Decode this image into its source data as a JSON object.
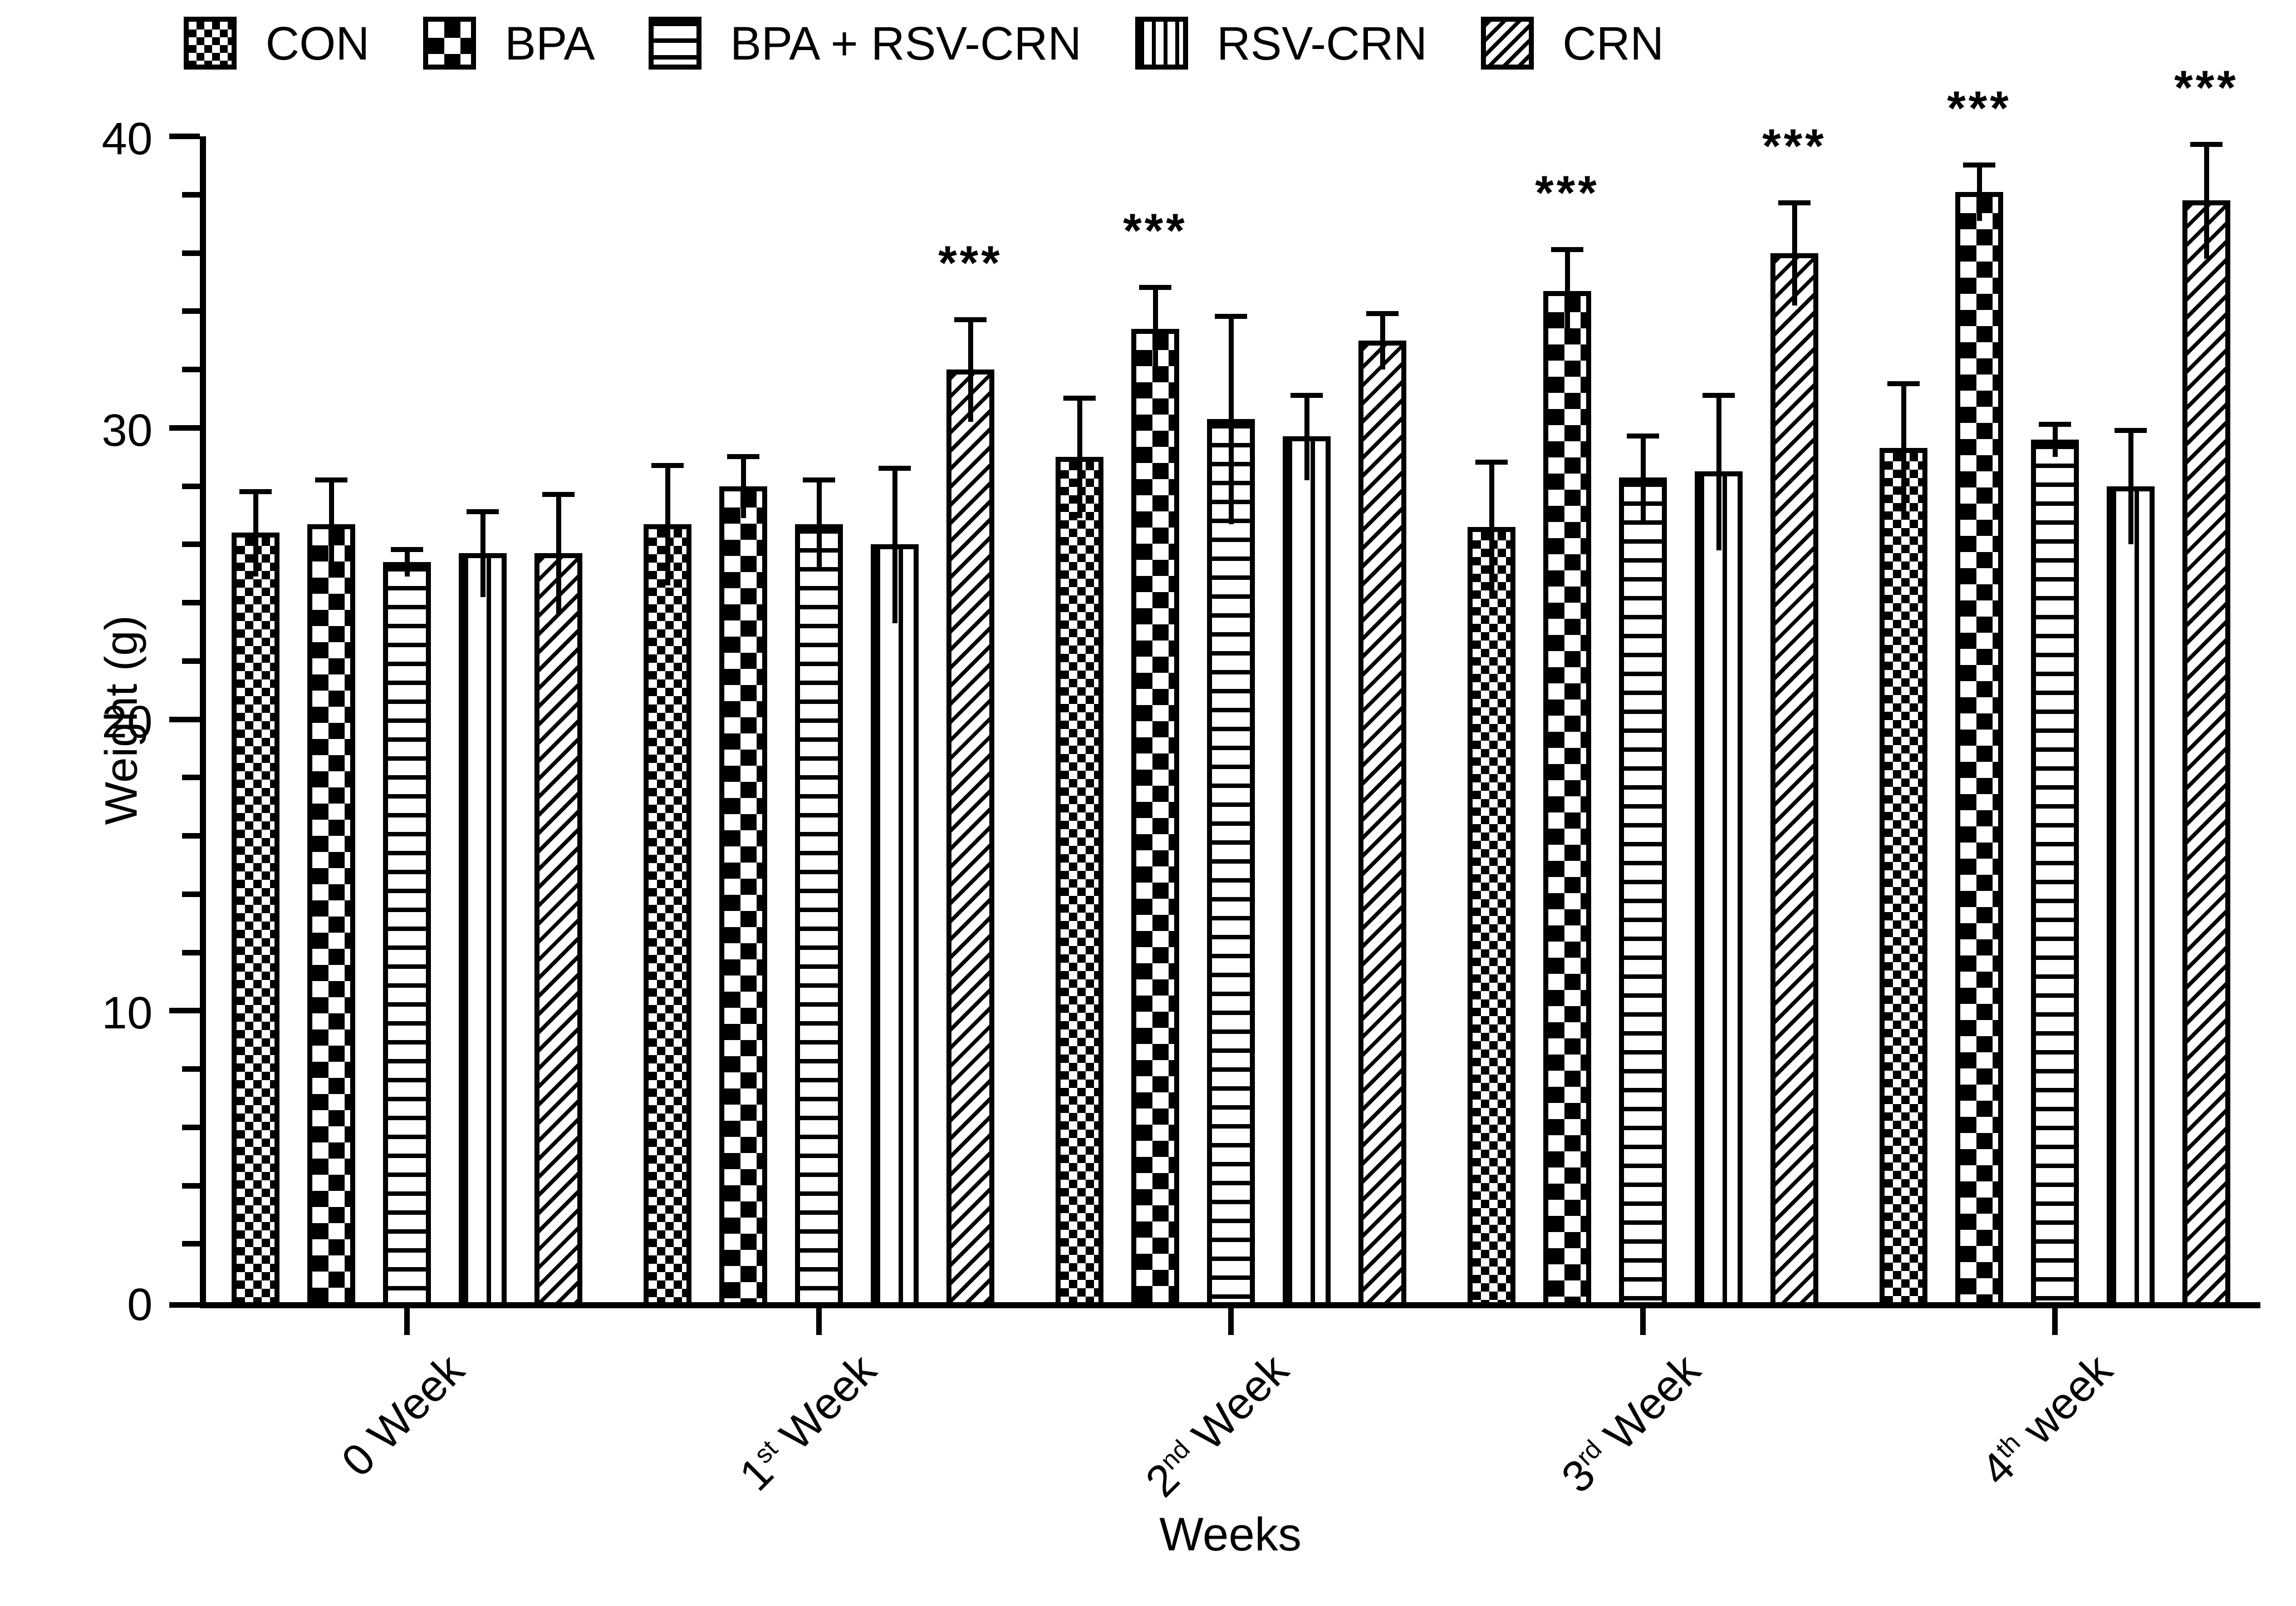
{
  "colors": {
    "ink": "#000000",
    "paper": "#ffffff"
  },
  "chart_data": {
    "type": "bar",
    "title": "",
    "xlabel": "Weeks",
    "ylabel": "Weight (g)",
    "ylim": [
      0,
      40
    ],
    "ytick_labels": [
      "0",
      "10",
      "20",
      "30",
      "40"
    ],
    "ytick_values": [
      0,
      10,
      20,
      30,
      40
    ],
    "minor_tick_step": 2,
    "grid": "off",
    "legend_position": "top",
    "error_bars": "upper SEM shown, stems symmetric",
    "sig_marker": "***",
    "categories": [
      {
        "pre": "0",
        "sup": "",
        "post": " Week"
      },
      {
        "pre": "1",
        "sup": "st",
        "post": " Week"
      },
      {
        "pre": "2",
        "sup": "nd",
        "post": " Week"
      },
      {
        "pre": "3",
        "sup": "rd",
        "post": " Week"
      },
      {
        "pre": "4",
        "sup": "th",
        "post": " week"
      }
    ],
    "series": [
      {
        "name": "CON",
        "pattern": "checker-small",
        "values": [
          26.4,
          26.7,
          29.0,
          26.6,
          29.3
        ],
        "errors": [
          1.5,
          2.1,
          2.1,
          2.3,
          2.3
        ],
        "sig": [
          "",
          "",
          "",
          "",
          ""
        ]
      },
      {
        "name": "BPA",
        "pattern": "checker-large",
        "values": [
          26.7,
          28.0,
          33.4,
          34.7,
          38.1
        ],
        "errors": [
          1.6,
          1.1,
          1.5,
          1.5,
          1.0
        ],
        "sig": [
          "",
          "",
          "***",
          "***",
          "***"
        ]
      },
      {
        "name": "BPA + RSV-CRN",
        "pattern": "hlines",
        "values": [
          25.4,
          26.7,
          30.3,
          28.3,
          29.6
        ],
        "errors": [
          0.5,
          1.6,
          3.6,
          1.5,
          0.6
        ],
        "sig": [
          "",
          "",
          "",
          "",
          ""
        ]
      },
      {
        "name": "RSV-CRN",
        "pattern": "vlines",
        "values": [
          25.7,
          26.0,
          29.7,
          28.5,
          28.0
        ],
        "errors": [
          1.5,
          2.7,
          1.5,
          2.7,
          2.0
        ],
        "sig": [
          "",
          "",
          "",
          "",
          ""
        ]
      },
      {
        "name": "CRN",
        "pattern": "diag",
        "values": [
          25.7,
          32.0,
          33.0,
          36.0,
          37.8
        ],
        "errors": [
          2.1,
          1.8,
          1.0,
          1.8,
          2.0
        ],
        "sig": [
          "",
          "***",
          "",
          "***",
          "***"
        ]
      }
    ]
  }
}
